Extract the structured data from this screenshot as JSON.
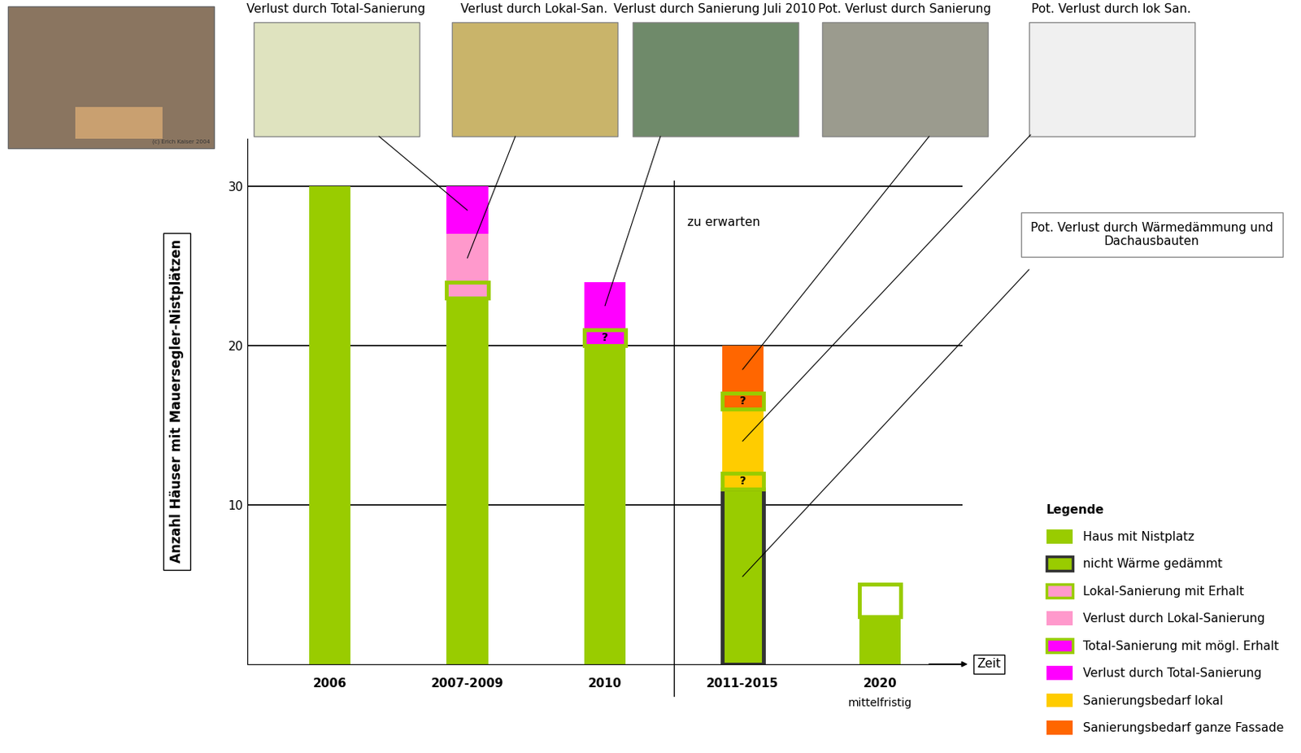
{
  "chart_data": {
    "type": "bar",
    "stacked": true,
    "y_label": "Anzahl Häuser mit Mauersegler-Nistplätzen",
    "x_label": "Zeit",
    "categories": [
      "2006",
      "2007-2009",
      "2010",
      "2011-2015",
      "2020"
    ],
    "category_notes": [
      null,
      null,
      null,
      null,
      "mittelfristig"
    ],
    "ylim": [
      0,
      33
    ],
    "yticks": [
      10,
      20,
      30
    ],
    "grid": true,
    "legend": "lower right",
    "legend_title": "Legende",
    "forecast": {
      "text": "zu erwarten",
      "from_category": "2011-2015"
    },
    "photo_credit": "(c) Erich Kaiser 2004",
    "series": [
      {
        "name": "Haus mit Nistplatz",
        "color": "#99cc00",
        "values": [
          30,
          23,
          20,
          null,
          3
        ]
      },
      {
        "name": "nicht Wärme gedämmt",
        "color": "#99cc00",
        "line_style": "dark_frame",
        "values": [
          null,
          null,
          null,
          11,
          null
        ]
      },
      {
        "name": "Lokal-Sanierung mit Erhalt",
        "color": "#ff99cc",
        "line_style": "framed",
        "values": [
          null,
          1,
          null,
          null,
          null
        ]
      },
      {
        "name": "Verlust durch Lokal-Sanierung",
        "color": "#ff99cc",
        "values": [
          null,
          3,
          null,
          null,
          null
        ]
      },
      {
        "name": "Total-Sanierung mit mögl. Erhalt",
        "color": "#ff00ff",
        "line_style": "framed",
        "mark_label": "?",
        "values": [
          null,
          null,
          1,
          null,
          null
        ]
      },
      {
        "name": "Verlust durch Total-Sanierung",
        "color": "#ff00ff",
        "values": [
          null,
          3,
          3,
          null,
          null
        ]
      },
      {
        "color": "#ffcc00",
        "line_style": "framed",
        "mark_label": "?",
        "values": [
          null,
          null,
          null,
          1,
          null
        ]
      },
      {
        "name": "Sanierungsbedarf lokal",
        "color": "#ffcc00",
        "values": [
          null,
          null,
          null,
          4,
          null
        ]
      },
      {
        "color": "#ff6600",
        "line_style": "framed",
        "mark_label": "?",
        "values": [
          null,
          null,
          null,
          1,
          null
        ]
      },
      {
        "name": "Sanierungsbedarf ganze Fassade",
        "color": "#ff6600",
        "values": [
          null,
          null,
          null,
          3,
          null
        ]
      },
      {
        "color": "#ffffff",
        "line_style": "framed",
        "values": [
          null,
          null,
          null,
          null,
          2
        ]
      }
    ],
    "annotations": [
      {
        "kind": "photo",
        "text": "Verlust durch Total-Sanierung",
        "category": "2007-2009",
        "series": "Verlust durch Total-Sanierung"
      },
      {
        "kind": "photo",
        "text": "Verlust durch Lokal-San.",
        "category": "2007-2009",
        "series": "Verlust durch Lokal-Sanierung"
      },
      {
        "kind": "photo",
        "text": "Verlust durch Sanierung Juli 2010",
        "category": "2010",
        "series": "Verlust durch Total-Sanierung"
      },
      {
        "kind": "photo",
        "text": "Pot. Verlust durch Sanierung",
        "category": "2011-2015",
        "series": "Sanierungsbedarf ganze Fassade"
      },
      {
        "kind": "photo",
        "text": "Pot. Verlust durch lok San.",
        "category": "2011-2015",
        "series": "Sanierungsbedarf lokal"
      },
      {
        "kind": "box",
        "text": "Pot. Verlust durch Wärmedämmung und Dachausbauten",
        "category": "2011-2015",
        "series": "nicht Wärme gedämmt"
      }
    ]
  }
}
